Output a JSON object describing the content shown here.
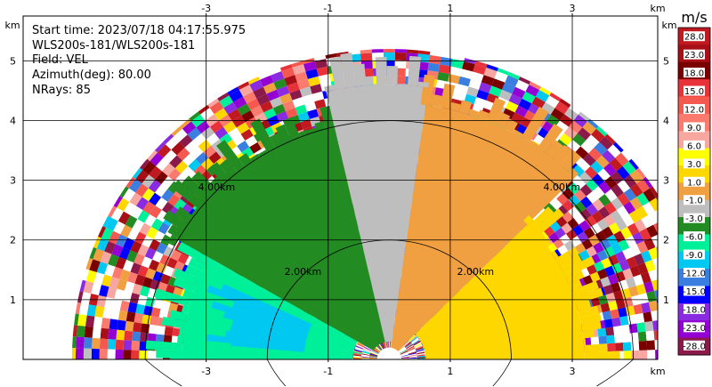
{
  "chart_data": {
    "type": "heatmap",
    "subtype": "radar-rhi-sector",
    "info_lines": [
      "Start time: 2023/07/18 04:17:55.975",
      "WLS200s-181/WLS200s-181",
      "Field: VEL",
      "Azimuth(deg): 80.00",
      "NRays: 85"
    ],
    "x_unit": "km",
    "y_unit": "km",
    "x_ticks": [
      "-3",
      "-1",
      "1",
      "3"
    ],
    "y_ticks": [
      "1",
      "2",
      "3",
      "4",
      "5"
    ],
    "xlim": [
      -6.0,
      4.4
    ],
    "ylim": [
      0,
      5.75
    ],
    "max_range_km": 5.2,
    "range_rings": [
      {
        "r": 2.0,
        "label": "2.00km"
      },
      {
        "r": 4.0,
        "label": "4.00km"
      }
    ],
    "colorbar": {
      "unit": "m/s",
      "labels": [
        "28.0",
        "23.0",
        "18.0",
        "15.0",
        "12.0",
        "9.0",
        "6.0",
        "3.0",
        "1.0",
        "-1.0",
        "-3.0",
        "-6.0",
        "-9.0",
        "-12.0",
        "-15.0",
        "-18.0",
        "-23.0",
        "-28.0"
      ],
      "colors": [
        "#c0191f",
        "#a50f15",
        "#7a0000",
        "#e8323a",
        "#f5584e",
        "#fa7a6e",
        "#f7a6a0",
        "#ffff00",
        "#ffd700",
        "#f0a040",
        "#bebebe",
        "#228b22",
        "#00f09a",
        "#00c8f0",
        "#3a7fe0",
        "#0000ff",
        "#8a2be2",
        "#9400d3",
        "#8b1a4a"
      ]
    },
    "regions": [
      {
        "name": "receding-strong",
        "angle_deg": [
          0,
          45
        ],
        "range_km": [
          0.6,
          3.2
        ],
        "color": "#ffd700"
      },
      {
        "name": "receding-weak",
        "angle_deg": [
          45,
          82
        ],
        "range_km": [
          0.2,
          4.3
        ],
        "color": "#f0a040"
      },
      {
        "name": "near-zero",
        "angle_deg": [
          82,
          103
        ],
        "range_km": [
          0.3,
          4.6
        ],
        "color": "#bebebe"
      },
      {
        "name": "approaching-weak",
        "angle_deg": [
          103,
          150
        ],
        "range_km": [
          0.3,
          4.0
        ],
        "color": "#228b22"
      },
      {
        "name": "approaching-mid",
        "angle_deg": [
          150,
          180
        ],
        "range_km": [
          0.6,
          3.4
        ],
        "color": "#00f09a"
      },
      {
        "name": "approaching-strong",
        "angle_deg": [
          155,
          175
        ],
        "range_km": [
          1.4,
          2.6
        ],
        "color": "#00c8f0"
      }
    ]
  }
}
